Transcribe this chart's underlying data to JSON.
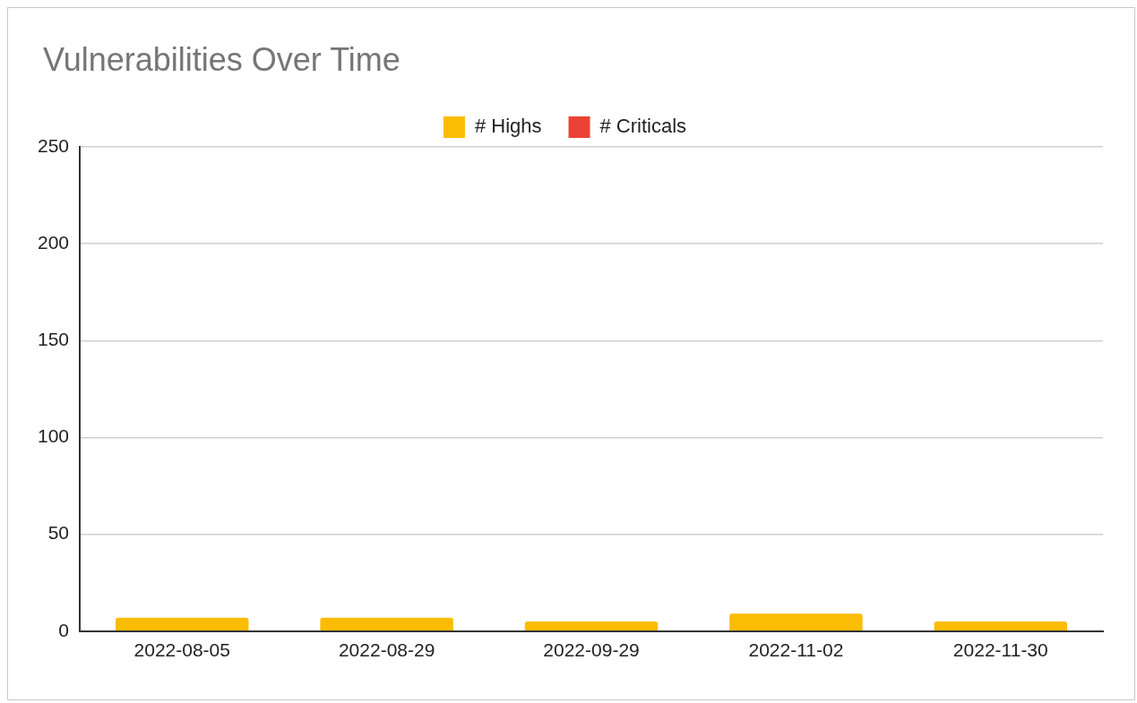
{
  "chart_data": {
    "type": "bar",
    "title": "Vulnerabilities Over Time",
    "categories": [
      "2022-08-05",
      "2022-08-29",
      "2022-09-29",
      "2022-11-02",
      "2022-11-30"
    ],
    "series": [
      {
        "name": "# Highs",
        "color": "#fbbc04",
        "values": [
          7,
          7,
          5,
          9,
          5
        ]
      },
      {
        "name": "# Criticals",
        "color": "#ea4335",
        "values": [
          0,
          0,
          0,
          0,
          0
        ]
      }
    ],
    "stacked": true,
    "ylim": [
      0,
      250
    ],
    "yticks": [
      0,
      50,
      100,
      150,
      200,
      250
    ],
    "grid": "y",
    "legend": "top"
  }
}
